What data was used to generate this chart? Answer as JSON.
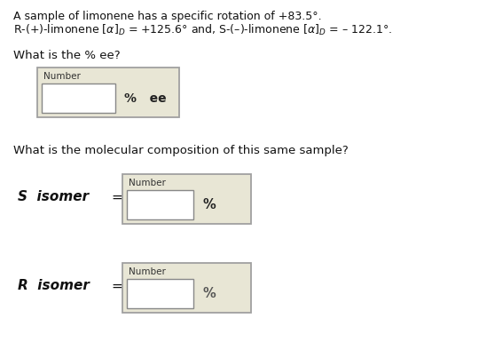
{
  "line1": "A sample of limonene has a specific rotation of +83.5°.",
  "line2": "R-(+)-limonene [α]D = +125.6° and, S-(-)-limonene [α]D = – 122.1°.",
  "question1": "What is the % ee?",
  "question2": "What is the molecular composition of this same sample?",
  "s_label": "S  isomer",
  "r_label": "R  isomer",
  "equals": "=",
  "percent_ee": "%   ee",
  "percent": "%",
  "number_label": "Number",
  "bg_color": "#ffffff",
  "box_fill": "#e8e6d5",
  "box_border": "#a0a0a0",
  "inner_box_fill": "#ffffff",
  "inner_box_border": "#888888",
  "text_color": "#111111"
}
